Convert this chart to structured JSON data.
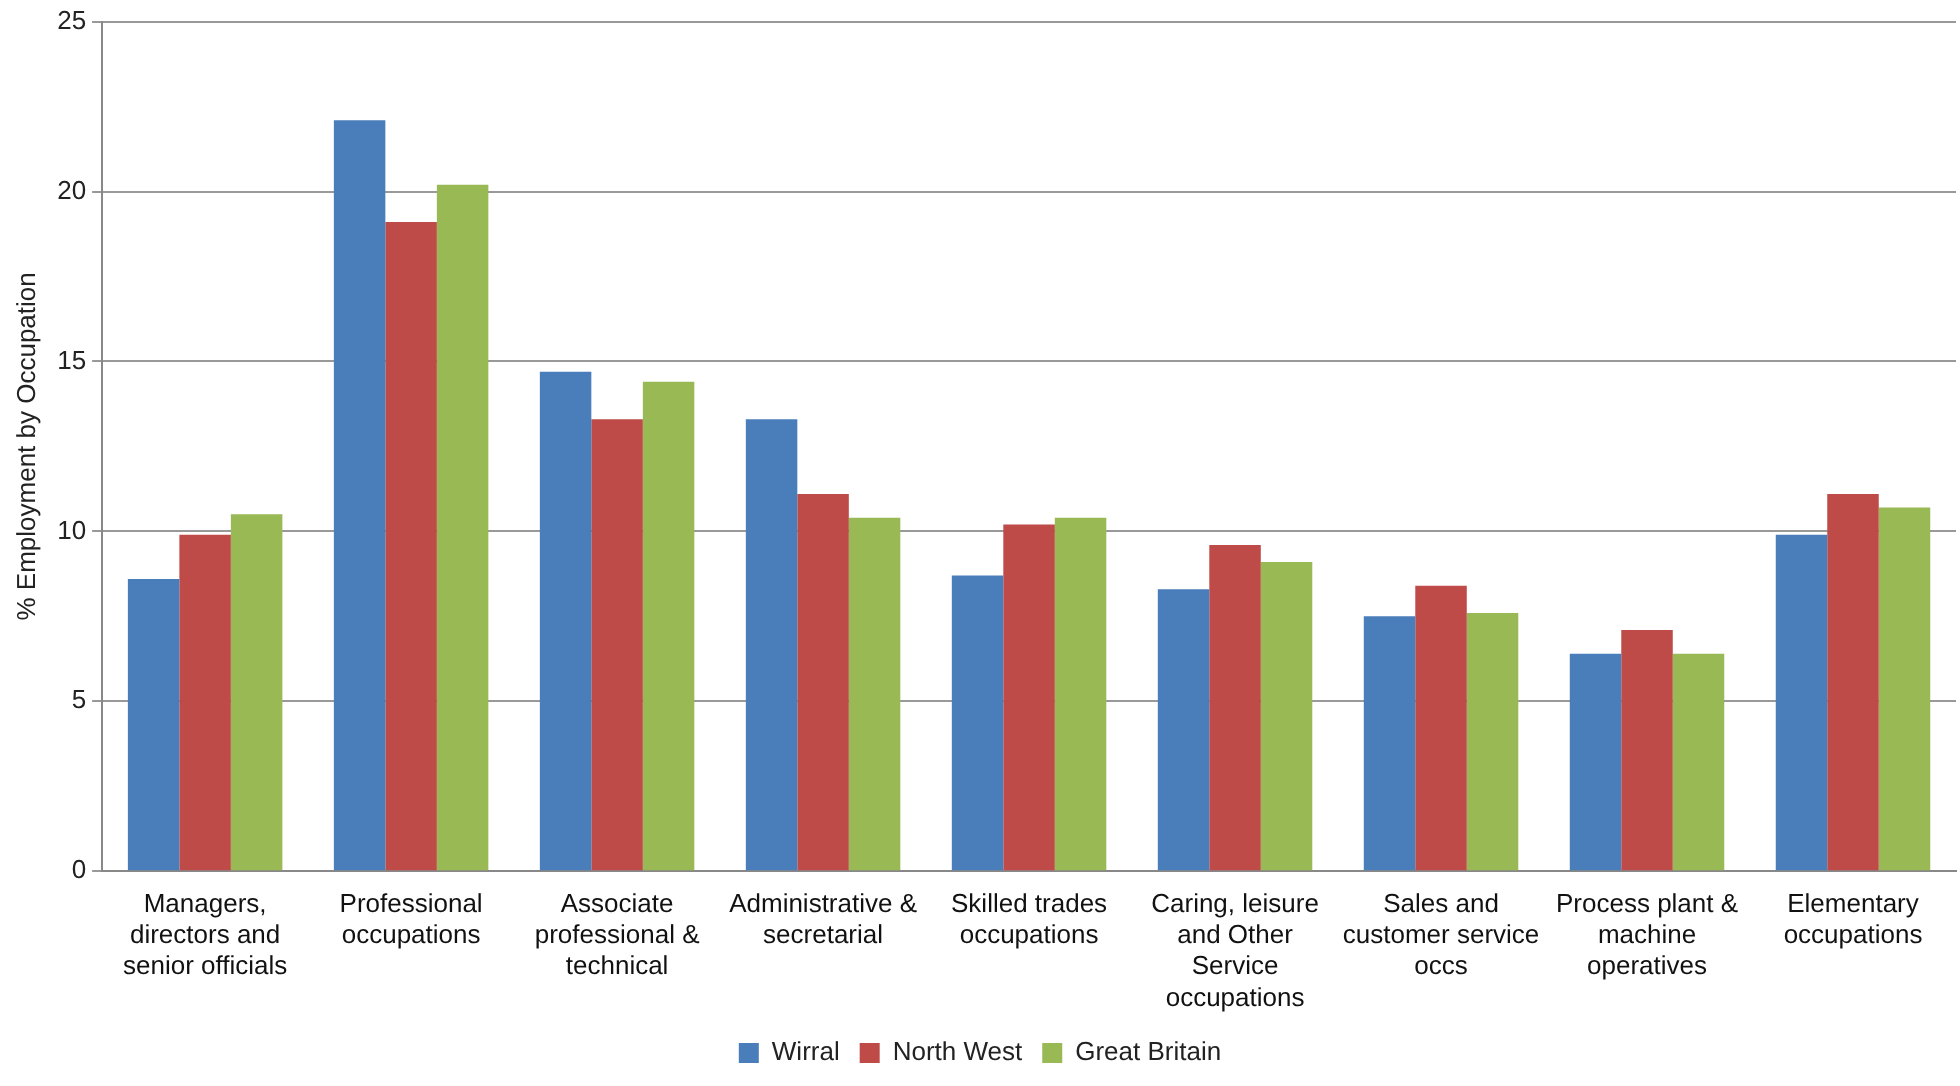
{
  "chart_data": {
    "type": "bar",
    "ylabel": "% Employment by Occupation",
    "categories": [
      "Managers, directors and senior officials",
      "Professional occupations",
      "Associate professional & technical",
      "Administrative & secretarial",
      "Skilled trades occupations",
      "Caring, leisure and Other Service occupations",
      "Sales and customer service occs",
      "Process plant & machine operatives",
      "Elementary occupations"
    ],
    "series": [
      {
        "name": "Wirral",
        "color": "#4a7ebb",
        "values": [
          8.6,
          22.1,
          14.7,
          13.3,
          8.7,
          8.3,
          7.5,
          6.4,
          9.9
        ]
      },
      {
        "name": "North West",
        "color": "#be4b48",
        "values": [
          9.9,
          19.1,
          13.3,
          11.1,
          10.2,
          9.6,
          8.4,
          7.1,
          11.1
        ]
      },
      {
        "name": "Great Britain",
        "color": "#98b954",
        "values": [
          10.5,
          20.2,
          14.4,
          10.4,
          10.4,
          9.1,
          7.6,
          6.4,
          10.7
        ]
      }
    ],
    "ylim": [
      0,
      25
    ],
    "yticks": [
      0,
      5,
      10,
      15,
      20,
      25
    ],
    "grid": "y",
    "legend": "bottom"
  }
}
